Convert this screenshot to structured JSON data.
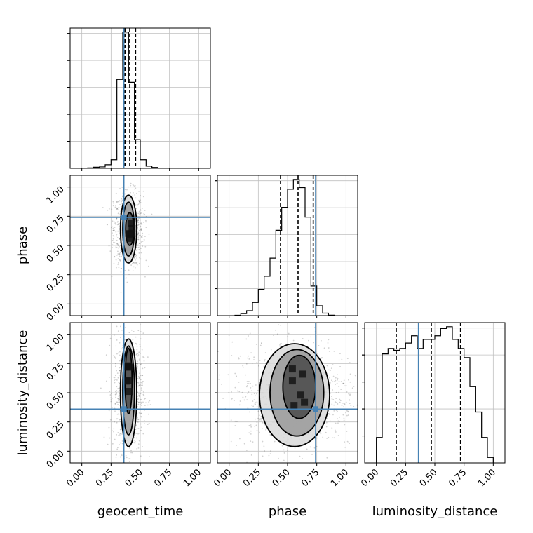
{
  "chart_data": {
    "type": "corner",
    "parameters": [
      "geocent_time",
      "phase",
      "luminosity_distance"
    ],
    "axis_range": [
      -0.1,
      1.1
    ],
    "tick_values": [
      0.0,
      0.25,
      0.5,
      0.75,
      1.0
    ],
    "tick_labels": [
      "0.00",
      "0.25",
      "0.50",
      "0.75",
      "1.00"
    ],
    "grid": true,
    "truths": {
      "geocent_time": 0.36,
      "phase": 0.74,
      "luminosity_distance": 0.36
    },
    "quantiles": {
      "geocent_time": [
        0.37,
        0.41,
        0.46
      ],
      "phase": [
        0.44,
        0.59,
        0.72
      ],
      "luminosity_distance": [
        0.17,
        0.47,
        0.72
      ]
    },
    "histograms": {
      "geocent_time": {
        "edges": [
          0.05,
          0.1,
          0.15,
          0.2,
          0.25,
          0.3,
          0.35,
          0.4,
          0.45,
          0.5,
          0.55,
          0.6,
          0.65,
          0.7
        ],
        "counts": [
          0.3,
          0.8,
          1.0,
          2.5,
          6.0,
          62,
          95,
          60,
          20,
          6,
          1.5,
          0.6,
          0.2
        ]
      },
      "phase": {
        "edges": [
          0.05,
          0.1,
          0.15,
          0.2,
          0.25,
          0.3,
          0.35,
          0.4,
          0.45,
          0.5,
          0.55,
          0.6,
          0.65,
          0.7,
          0.75,
          0.8,
          0.85,
          0.9
        ],
        "counts": [
          0.2,
          1.2,
          3.0,
          8,
          16,
          24,
          35,
          52,
          66,
          77,
          83,
          78,
          60,
          18,
          6,
          1.5,
          0.3
        ]
      },
      "luminosity_distance": {
        "edges": [
          0.0,
          0.05,
          0.1,
          0.15,
          0.2,
          0.25,
          0.3,
          0.35,
          0.4,
          0.45,
          0.5,
          0.55,
          0.6,
          0.65,
          0.7,
          0.75,
          0.8,
          0.85,
          0.9,
          0.95,
          1.0
        ],
        "counts": [
          14,
          60,
          63,
          62,
          63,
          66,
          70,
          63,
          68,
          68,
          70,
          74,
          75,
          68,
          63,
          58,
          42,
          28,
          14,
          3
        ]
      }
    },
    "contours_2d": {
      "phase_vs_geocent_time": {
        "levels": [
          {
            "cx": 0.4,
            "cy": 0.64,
            "rx": 0.07,
            "ry": 0.29
          },
          {
            "cx": 0.4,
            "cy": 0.64,
            "rx": 0.05,
            "ry": 0.23
          },
          {
            "cx": 0.41,
            "cy": 0.64,
            "rx": 0.035,
            "ry": 0.14
          }
        ]
      },
      "luminosity_distance_vs_geocent_time": {
        "levels": [
          {
            "cx": 0.4,
            "cy": 0.5,
            "rx": 0.07,
            "ry": 0.46
          },
          {
            "cx": 0.4,
            "cy": 0.52,
            "rx": 0.05,
            "ry": 0.38
          },
          {
            "cx": 0.4,
            "cy": 0.6,
            "rx": 0.03,
            "ry": 0.28
          }
        ]
      },
      "luminosity_distance_vs_phase": {
        "levels": [
          {
            "cx": 0.56,
            "cy": 0.48,
            "rx": 0.3,
            "ry": 0.44
          },
          {
            "cx": 0.58,
            "cy": 0.5,
            "rx": 0.23,
            "ry": 0.37
          },
          {
            "cx": 0.6,
            "cy": 0.55,
            "rx": 0.14,
            "ry": 0.27
          }
        ]
      }
    }
  }
}
